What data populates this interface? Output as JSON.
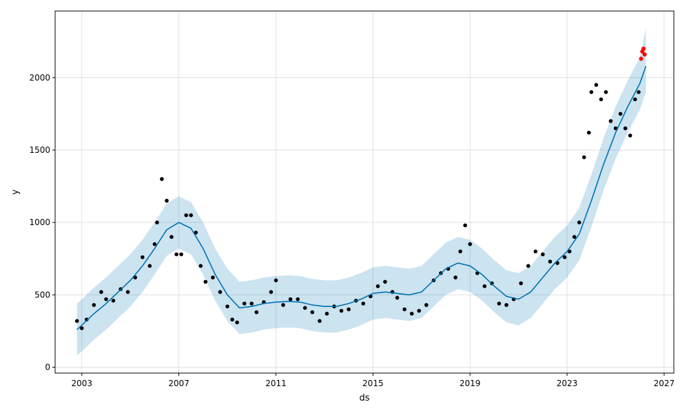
{
  "chart_data": {
    "type": "line",
    "xlabel": "ds",
    "ylabel": "y",
    "x_range": [
      2001.9,
      2027.4
    ],
    "ylim": [
      -40,
      2460
    ],
    "x_ticks": [
      {
        "value": 2003,
        "label": "2003"
      },
      {
        "value": 2007,
        "label": "2007"
      },
      {
        "value": 2011,
        "label": "2011"
      },
      {
        "value": 2015,
        "label": "2015"
      },
      {
        "value": 2019,
        "label": "2019"
      },
      {
        "value": 2023,
        "label": "2023"
      },
      {
        "value": 2027,
        "label": "2027"
      }
    ],
    "y_ticks": [
      {
        "value": 0,
        "label": "0"
      },
      {
        "value": 500,
        "label": "500"
      },
      {
        "value": 1000,
        "label": "1000"
      },
      {
        "value": 1500,
        "label": "1500"
      },
      {
        "value": 2000,
        "label": "2000"
      }
    ],
    "grid": true,
    "colors": {
      "forecast": "#0072B2",
      "interval": "#0072B2",
      "observed": "#000000",
      "recent_observed": "#ff0000"
    },
    "series": [
      {
        "role": "forecast (yhat)",
        "x": [
          2002.8,
          2003.0,
          2003.5,
          2004.0,
          2004.5,
          2005.0,
          2005.5,
          2006.0,
          2006.5,
          2007.0,
          2007.5,
          2008.0,
          2008.5,
          2009.0,
          2009.5,
          2010.0,
          2010.5,
          2011.0,
          2011.5,
          2012.0,
          2012.5,
          2013.0,
          2013.5,
          2014.0,
          2014.5,
          2015.0,
          2015.5,
          2016.0,
          2016.5,
          2017.0,
          2017.5,
          2018.0,
          2018.5,
          2019.0,
          2019.5,
          2020.0,
          2020.5,
          2021.0,
          2021.5,
          2022.0,
          2022.5,
          2023.0,
          2023.5,
          2024.0,
          2024.5,
          2025.0,
          2025.5,
          2026.0,
          2026.25
        ],
        "y": [
          260,
          290,
          370,
          440,
          520,
          600,
          700,
          820,
          950,
          1000,
          960,
          820,
          640,
          500,
          410,
          420,
          440,
          450,
          455,
          450,
          430,
          420,
          420,
          440,
          470,
          510,
          520,
          510,
          500,
          520,
          600,
          680,
          720,
          700,
          640,
          560,
          490,
          470,
          520,
          620,
          720,
          800,
          920,
          1150,
          1400,
          1620,
          1800,
          1960,
          2080
        ]
      },
      {
        "role": "uncertainty interval (yhat_lower / yhat_upper)",
        "x": [
          2002.8,
          2003.0,
          2003.5,
          2004.0,
          2004.5,
          2005.0,
          2005.5,
          2006.0,
          2006.5,
          2007.0,
          2007.5,
          2008.0,
          2008.5,
          2009.0,
          2009.5,
          2010.0,
          2010.5,
          2011.0,
          2011.5,
          2012.0,
          2012.5,
          2013.0,
          2013.5,
          2014.0,
          2014.5,
          2015.0,
          2015.5,
          2016.0,
          2016.5,
          2017.0,
          2017.5,
          2018.0,
          2018.5,
          2019.0,
          2019.5,
          2020.0,
          2020.5,
          2021.0,
          2021.5,
          2022.0,
          2022.5,
          2023.0,
          2023.5,
          2024.0,
          2024.5,
          2025.0,
          2025.5,
          2026.0,
          2026.25
        ],
        "lower": [
          80,
          110,
          190,
          260,
          340,
          420,
          520,
          640,
          770,
          820,
          780,
          640,
          460,
          320,
          230,
          240,
          260,
          270,
          275,
          270,
          250,
          240,
          240,
          260,
          290,
          330,
          340,
          330,
          320,
          340,
          420,
          500,
          540,
          520,
          460,
          380,
          310,
          290,
          340,
          440,
          540,
          620,
          740,
          970,
          1220,
          1440,
          1620,
          1780,
          1900
        ],
        "upper": [
          440,
          470,
          550,
          620,
          700,
          780,
          880,
          1000,
          1130,
          1180,
          1140,
          1000,
          820,
          680,
          590,
          600,
          620,
          630,
          635,
          630,
          610,
          600,
          600,
          620,
          650,
          690,
          700,
          690,
          680,
          700,
          780,
          860,
          900,
          880,
          820,
          740,
          670,
          650,
          700,
          800,
          900,
          980,
          1100,
          1330,
          1580,
          1800,
          1980,
          2140,
          2340
        ]
      },
      {
        "role": "observed",
        "x": [
          2002.8,
          2003.0,
          2003.2,
          2003.5,
          2003.8,
          2004.0,
          2004.3,
          2004.6,
          2004.9,
          2005.2,
          2005.5,
          2005.8,
          2006.0,
          2006.1,
          2006.3,
          2006.5,
          2006.7,
          2006.9,
          2007.1,
          2007.3,
          2007.5,
          2007.7,
          2007.9,
          2008.1,
          2008.4,
          2008.7,
          2009.0,
          2009.2,
          2009.4,
          2009.7,
          2010.0,
          2010.2,
          2010.5,
          2010.8,
          2011.0,
          2011.3,
          2011.6,
          2011.9,
          2012.2,
          2012.5,
          2012.8,
          2013.1,
          2013.4,
          2013.7,
          2014.0,
          2014.3,
          2014.6,
          2014.9,
          2015.2,
          2015.5,
          2015.8,
          2016.0,
          2016.3,
          2016.6,
          2016.9,
          2017.2,
          2017.5,
          2017.8,
          2018.1,
          2018.4,
          2018.6,
          2018.8,
          2019.0,
          2019.3,
          2019.6,
          2019.9,
          2020.2,
          2020.5,
          2020.8,
          2021.1,
          2021.4,
          2021.7,
          2022.0,
          2022.3,
          2022.6,
          2022.9,
          2023.1,
          2023.3,
          2023.5,
          2023.7,
          2023.9,
          2024.0,
          2024.2,
          2024.4,
          2024.6,
          2024.8,
          2025.0,
          2025.2,
          2025.4,
          2025.6,
          2025.8,
          2025.95
        ],
        "y": [
          320,
          270,
          330,
          430,
          520,
          470,
          460,
          540,
          520,
          620,
          760,
          700,
          850,
          1000,
          1300,
          1150,
          900,
          780,
          780,
          1050,
          1050,
          930,
          700,
          590,
          620,
          520,
          420,
          330,
          310,
          440,
          440,
          380,
          450,
          520,
          600,
          430,
          470,
          470,
          410,
          380,
          320,
          370,
          420,
          390,
          400,
          460,
          440,
          490,
          560,
          590,
          520,
          480,
          400,
          370,
          390,
          430,
          600,
          650,
          680,
          620,
          800,
          980,
          850,
          650,
          560,
          580,
          440,
          430,
          470,
          580,
          700,
          800,
          780,
          730,
          720,
          760,
          800,
          900,
          1000,
          1450,
          1620,
          1900,
          1950,
          1850,
          1900,
          1700,
          1650,
          1750,
          1650,
          1600,
          1850,
          1900
        ]
      },
      {
        "role": "recent observed",
        "x": [
          2026.05,
          2026.1,
          2026.15,
          2026.2
        ],
        "y": [
          2130,
          2180,
          2200,
          2160
        ]
      }
    ]
  }
}
